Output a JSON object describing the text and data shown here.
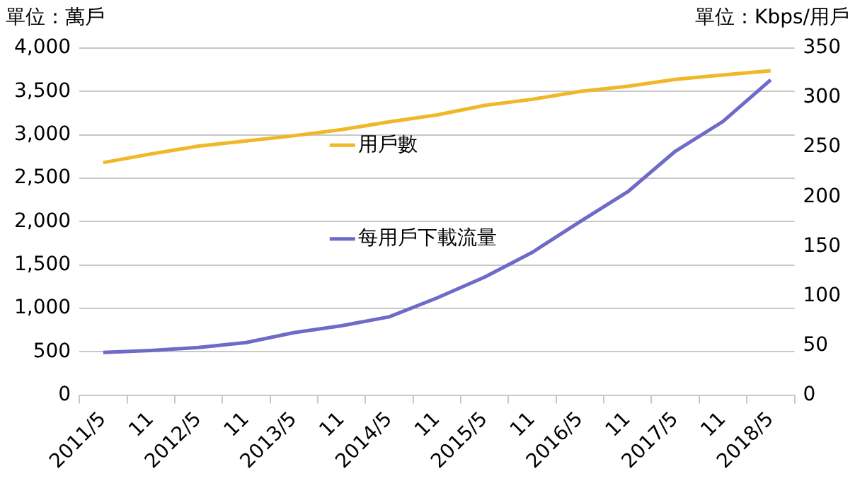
{
  "chart_data": {
    "type": "line",
    "ylabel": "單位：萬戶",
    "y2label": "單位：Kbps/用戶",
    "categories": [
      "2011/5",
      "11",
      "2012/5",
      "11",
      "2013/5",
      "11",
      "2014/5",
      "11",
      "2015/5",
      "11",
      "2016/5",
      "11",
      "2017/5",
      "11",
      "2018/5"
    ],
    "series": [
      {
        "name": "用戶數",
        "color": "#f0b828",
        "values": [
          2680,
          2780,
          2870,
          2930,
          2990,
          3060,
          3150,
          3230,
          3340,
          3410,
          3500,
          3560,
          3640,
          3690,
          3740
        ]
      },
      {
        "name": "每用戶下載流量",
        "color": "#6e6ac8",
        "axis": "y2",
        "values": [
          43,
          45,
          48,
          53,
          63,
          70,
          79,
          98,
          119,
          144,
          175,
          205,
          246,
          276,
          318
        ]
      }
    ],
    "ylim": [
      0,
      4000
    ],
    "yticks": [
      0,
      500,
      {
        "value": 1000,
        "label": "1,000"
      },
      {
        "value": 1500,
        "label": "1,500"
      },
      {
        "value": 2000,
        "label": "2,000"
      },
      {
        "value": 2500,
        "label": "2,500"
      },
      {
        "value": 3000,
        "label": "3,000"
      },
      {
        "value": 3500,
        "label": "3,500"
      },
      {
        "value": 4000,
        "label": "4,000"
      }
    ],
    "y2lim": [
      0,
      350
    ],
    "y2ticks": [
      0,
      50,
      100,
      150,
      200,
      250,
      300,
      350
    ],
    "grid": "y",
    "legend": "center",
    "marker": "none",
    "line_style": "solid"
  }
}
